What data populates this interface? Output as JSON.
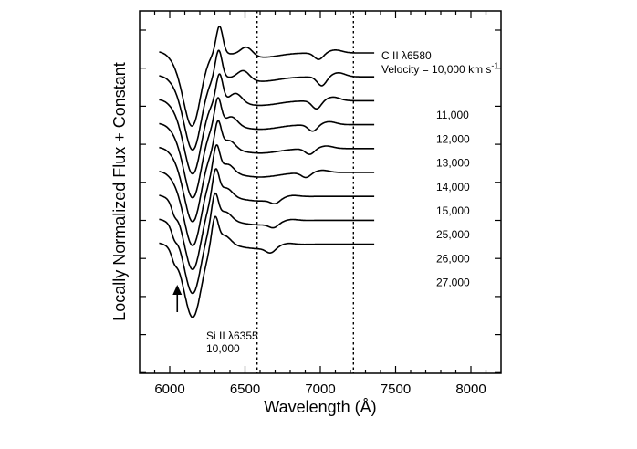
{
  "chart_data": {
    "type": "line",
    "xlabel": "Wavelength (Å)",
    "ylabel": "Locally Normalized Flux + Constant",
    "xlim": [
      5800,
      8200
    ],
    "x_ticks": [
      "6000",
      "6500",
      "7000",
      "7500",
      "8000"
    ],
    "grid": false,
    "legend": "none",
    "vertical_lines": [
      6580,
      7220
    ],
    "series": [
      {
        "name": "",
        "label": "Velocity = 10,000 km s",
        "label_sup": "-1",
        "carbon_min": 6990,
        "c_depth": 0.8,
        "offset": 0,
        "si_min": 6150,
        "si_depth": 1.0,
        "peak": 6330,
        "peak2": 6510,
        "notch": false
      },
      {
        "name": "",
        "label": "11,000",
        "carbon_min": 7010,
        "c_depth": 1.1,
        "offset": 1,
        "si_min": 6155,
        "si_depth": 1.0,
        "peak": 6325,
        "peak2": 6490,
        "notch": false
      },
      {
        "name": "",
        "label": "12,000",
        "carbon_min": 6975,
        "c_depth": 1.0,
        "offset": 2,
        "si_min": 6155,
        "si_depth": 1.0,
        "peak": 6330,
        "peak2": 6440,
        "notch": false
      },
      {
        "name": "",
        "label": "13,000",
        "carbon_min": 6950,
        "c_depth": 0.8,
        "offset": 3,
        "si_min": 6155,
        "si_depth": 1.0,
        "peak": 6320,
        "peak2": 6410,
        "notch": false
      },
      {
        "name": "",
        "label": "14,000",
        "carbon_min": 6930,
        "c_depth": 0.7,
        "offset": 4,
        "si_min": 6155,
        "si_depth": 1.0,
        "peak": 6320,
        "peak2": 6395,
        "notch": false
      },
      {
        "name": "",
        "label": "15,000",
        "carbon_min": 6905,
        "c_depth": 0.6,
        "offset": 5,
        "si_min": 6155,
        "si_depth": 1.0,
        "peak": 6310,
        "peak2": 6385,
        "notch": false
      },
      {
        "name": "",
        "label": "25,000",
        "carbon_min": 6700,
        "c_depth": 0.5,
        "offset": 6,
        "si_min": 6155,
        "si_depth": 1.0,
        "peak": 6305,
        "peak2": 6375,
        "notch": true
      },
      {
        "name": "",
        "label": "26,000",
        "carbon_min": 6690,
        "c_depth": 0.5,
        "offset": 7,
        "si_min": 6155,
        "si_depth": 1.0,
        "peak": 6300,
        "peak2": 6370,
        "notch": true
      },
      {
        "name": "",
        "label": "27,000",
        "carbon_min": 6670,
        "c_depth": 0.6,
        "offset": 8,
        "si_min": 6155,
        "si_depth": 1.0,
        "peak": 6300,
        "peak2": 6365,
        "notch": true
      }
    ],
    "annotations": {
      "c_ii_label": "C II λ6580",
      "si_ii_label": "Si II λ6355",
      "si_ii_velocity": "10,000",
      "arrow_wavelength": 6050
    },
    "colors": {
      "line": "#000000",
      "background": "#ffffff"
    }
  }
}
